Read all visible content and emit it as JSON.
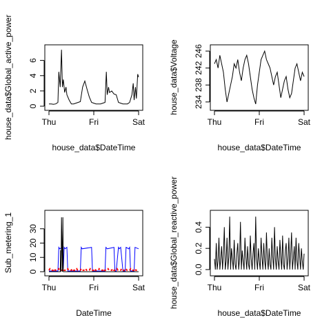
{
  "chart_data": [
    {
      "type": "line",
      "xlabel": "house_data$DateTime",
      "ylabel": "house_data$Global_active_power",
      "xlim": [
        0,
        2
      ],
      "ylim": [
        0,
        7.5
      ],
      "x_ticks": [
        0,
        1,
        2
      ],
      "x_tick_labels": [
        "Thu",
        "Fri",
        "Sat"
      ],
      "y_ticks": [
        0,
        2,
        4,
        6
      ],
      "y_tick_labels": [
        "0",
        "2",
        "4",
        "6"
      ],
      "series": [
        {
          "color": "#000000",
          "x": [
            0.0,
            0.05,
            0.1,
            0.15,
            0.2,
            0.22,
            0.25,
            0.28,
            0.3,
            0.32,
            0.35,
            0.38,
            0.4,
            0.45,
            0.5,
            0.55,
            0.6,
            0.65,
            0.7,
            0.75,
            0.8,
            0.85,
            0.9,
            0.95,
            1.0,
            1.05,
            1.1,
            1.15,
            1.2,
            1.25,
            1.28,
            1.3,
            1.33,
            1.35,
            1.4,
            1.45,
            1.5,
            1.55,
            1.6,
            1.65,
            1.7,
            1.75,
            1.8,
            1.85,
            1.88,
            1.9,
            1.93,
            1.95,
            1.98,
            2.0
          ],
          "y": [
            0.3,
            0.3,
            0.25,
            0.3,
            0.5,
            4.5,
            2.5,
            7.4,
            2.5,
            3.5,
            1.8,
            2.5,
            1.5,
            0.8,
            0.3,
            0.3,
            0.4,
            0.5,
            0.6,
            2.5,
            3.3,
            2.2,
            1.2,
            0.5,
            0.4,
            0.3,
            0.3,
            0.3,
            0.4,
            0.5,
            4.5,
            1.5,
            2.5,
            1.8,
            2.0,
            1.6,
            1.5,
            0.5,
            0.4,
            0.3,
            0.3,
            0.3,
            0.5,
            1.5,
            3.0,
            0.8,
            2.5,
            1.0,
            4.2,
            3.8
          ]
        }
      ]
    },
    {
      "type": "line",
      "xlabel": "house_data$DateTime",
      "ylabel": "house_data$Voltage",
      "xlim": [
        0,
        2
      ],
      "ylim": [
        233,
        246.5
      ],
      "x_ticks": [
        0,
        1,
        2
      ],
      "x_tick_labels": [
        "Thu",
        "Fri",
        "Sat"
      ],
      "y_ticks": [
        234,
        238,
        242,
        246
      ],
      "y_tick_labels": [
        "234",
        "238",
        "242",
        "246"
      ],
      "series": [
        {
          "color": "#000000",
          "x": [
            0.0,
            0.04,
            0.08,
            0.12,
            0.16,
            0.2,
            0.24,
            0.28,
            0.32,
            0.36,
            0.4,
            0.44,
            0.48,
            0.52,
            0.56,
            0.6,
            0.64,
            0.68,
            0.72,
            0.76,
            0.8,
            0.84,
            0.88,
            0.92,
            0.96,
            1.0,
            1.04,
            1.08,
            1.12,
            1.16,
            1.2,
            1.24,
            1.28,
            1.32,
            1.36,
            1.4,
            1.44,
            1.48,
            1.52,
            1.56,
            1.6,
            1.64,
            1.68,
            1.72,
            1.76,
            1.8,
            1.84,
            1.88,
            1.92,
            1.96,
            2.0
          ],
          "y": [
            243,
            244,
            242,
            245,
            243,
            241,
            237,
            234,
            236,
            238,
            240,
            243,
            242,
            244,
            241,
            239,
            242,
            244,
            245,
            243,
            240,
            237,
            235,
            233.5,
            238,
            241,
            244,
            245,
            246,
            244,
            243,
            242,
            240,
            238,
            240,
            241,
            238,
            235,
            237,
            239,
            240,
            237,
            235,
            236,
            239,
            242,
            243,
            241,
            239,
            241,
            240
          ]
        }
      ]
    },
    {
      "type": "line",
      "xlabel": "DateTime",
      "ylabel": "Sub_metering_1",
      "xlim": [
        0,
        2
      ],
      "ylim": [
        0,
        40
      ],
      "x_ticks": [
        0,
        1,
        2
      ],
      "x_tick_labels": [
        "Thu",
        "Fri",
        "Sat"
      ],
      "y_ticks": [
        0,
        10,
        20,
        30
      ],
      "y_tick_labels": [
        "0",
        "10",
        "20",
        "30"
      ],
      "series": [
        {
          "color": "#0000ff",
          "x": [
            0.0,
            0.2,
            0.22,
            0.24,
            0.3,
            0.32,
            0.34,
            0.36,
            0.4,
            0.42,
            0.44,
            0.5,
            0.7,
            0.72,
            0.74,
            0.95,
            0.97,
            1.0,
            1.25,
            1.27,
            1.3,
            1.45,
            1.47,
            1.5,
            1.55,
            1.57,
            1.6,
            1.65,
            1.7,
            1.72,
            1.78,
            1.8,
            1.82,
            1.85,
            1.9,
            1.92,
            2.0
          ],
          "y": [
            0.5,
            0.5,
            17,
            16,
            17,
            2,
            17,
            16,
            17,
            0.5,
            0.5,
            0.5,
            0.5,
            17,
            16,
            17,
            0.5,
            0.5,
            0.5,
            17,
            16,
            17,
            0.5,
            0.5,
            17,
            16,
            17,
            0.5,
            0.5,
            17,
            16,
            17,
            0.5,
            0.5,
            0.5,
            17,
            16
          ]
        },
        {
          "color": "#ff0000",
          "x": [
            0.0,
            0.02,
            0.04,
            0.1,
            0.12,
            0.14,
            0.2,
            0.22,
            0.24,
            0.3,
            0.32,
            0.34,
            0.4,
            0.42,
            0.44,
            0.5,
            0.52,
            0.54,
            0.6,
            0.62,
            0.64,
            0.7,
            0.72,
            0.74,
            0.8,
            0.82,
            0.84,
            0.9,
            0.92,
            0.94,
            1.0,
            1.02,
            1.04,
            1.1,
            1.12,
            1.14,
            1.2,
            1.22,
            1.24,
            1.3,
            1.32,
            1.34,
            1.4,
            1.42,
            1.44,
            1.5,
            1.52,
            1.54,
            1.6,
            1.62,
            1.64,
            1.7,
            1.72,
            1.74,
            1.8,
            1.82,
            1.84,
            1.9,
            1.92,
            1.94,
            2.0
          ],
          "y": [
            1,
            2,
            1,
            1,
            2,
            1,
            1,
            2,
            1,
            1,
            2,
            1,
            1,
            2,
            1,
            1,
            2,
            1,
            1,
            2,
            1,
            1,
            2,
            1,
            1,
            2,
            1,
            1,
            2,
            1,
            1,
            2,
            1,
            1,
            2,
            1,
            1,
            2,
            1,
            1,
            2,
            1,
            1,
            2,
            1,
            1,
            2,
            1,
            1,
            2,
            1,
            1,
            2,
            1,
            1,
            2,
            1,
            1,
            2,
            1,
            1
          ]
        },
        {
          "color": "#000000",
          "x": [
            0.0,
            0.25,
            0.26,
            0.27,
            0.28,
            0.3,
            0.31,
            0.32,
            0.34,
            0.4,
            0.5,
            2.0
          ],
          "y": [
            0,
            0,
            15,
            0,
            38,
            0,
            38,
            0,
            0,
            0,
            0,
            0
          ]
        }
      ]
    },
    {
      "type": "line",
      "xlabel": "house_data$DateTime",
      "ylabel": "house_data$Global_reactive_power",
      "xlim": [
        0,
        2
      ],
      "ylim": [
        -0.02,
        0.52
      ],
      "x_ticks": [
        0,
        1,
        2
      ],
      "x_tick_labels": [
        "Thu",
        "Fri",
        "Sat"
      ],
      "y_ticks": [
        0.0,
        0.2,
        0.4
      ],
      "y_tick_labels": [
        "0.0",
        "0.2",
        "0.4"
      ],
      "series": [
        {
          "color": "#000000",
          "x": [
            0.0,
            0.02,
            0.04,
            0.06,
            0.08,
            0.1,
            0.12,
            0.14,
            0.16,
            0.18,
            0.2,
            0.22,
            0.24,
            0.26,
            0.28,
            0.3,
            0.32,
            0.34,
            0.36,
            0.38,
            0.4,
            0.42,
            0.44,
            0.46,
            0.48,
            0.5,
            0.52,
            0.54,
            0.56,
            0.58,
            0.6,
            0.62,
            0.64,
            0.66,
            0.68,
            0.7,
            0.72,
            0.74,
            0.76,
            0.78,
            0.8,
            0.82,
            0.84,
            0.86,
            0.88,
            0.9,
            0.92,
            0.94,
            0.96,
            0.98,
            1.0,
            1.02,
            1.04,
            1.06,
            1.08,
            1.1,
            1.12,
            1.14,
            1.16,
            1.18,
            1.2,
            1.22,
            1.24,
            1.26,
            1.28,
            1.3,
            1.32,
            1.34,
            1.36,
            1.38,
            1.4,
            1.42,
            1.44,
            1.46,
            1.48,
            1.5,
            1.52,
            1.54,
            1.56,
            1.58,
            1.6,
            1.62,
            1.64,
            1.66,
            1.68,
            1.7,
            1.72,
            1.74,
            1.76,
            1.78,
            1.8,
            1.82,
            1.84,
            1.86,
            1.88,
            1.9,
            1.92,
            1.94,
            1.96,
            1.98,
            2.0
          ],
          "y": [
            0.1,
            0.0,
            0.25,
            0.0,
            0.08,
            0.3,
            0.0,
            0.1,
            0.22,
            0.0,
            0.15,
            0.4,
            0.0,
            0.08,
            0.3,
            0.0,
            0.12,
            0.5,
            0.0,
            0.2,
            0.1,
            0.0,
            0.28,
            0.05,
            0.0,
            0.15,
            0.25,
            0.0,
            0.1,
            0.45,
            0.0,
            0.18,
            0.08,
            0.0,
            0.3,
            0.12,
            0.0,
            0.22,
            0.05,
            0.0,
            0.32,
            0.1,
            0.0,
            0.15,
            0.25,
            0.0,
            0.5,
            0.1,
            0.0,
            0.2,
            0.08,
            0.0,
            0.3,
            0.12,
            0.0,
            0.25,
            0.08,
            0.0,
            0.35,
            0.1,
            0.0,
            0.2,
            0.05,
            0.0,
            0.3,
            0.12,
            0.0,
            0.4,
            0.1,
            0.0,
            0.22,
            0.08,
            0.0,
            0.28,
            0.12,
            0.0,
            0.32,
            0.05,
            0.0,
            0.18,
            0.25,
            0.0,
            0.1,
            0.3,
            0.0,
            0.15,
            0.35,
            0.0,
            0.1,
            0.22,
            0.0,
            0.3,
            0.08,
            0.0,
            0.25,
            0.12,
            0.0,
            0.2,
            0.08,
            0.0,
            0.15
          ]
        }
      ]
    }
  ]
}
